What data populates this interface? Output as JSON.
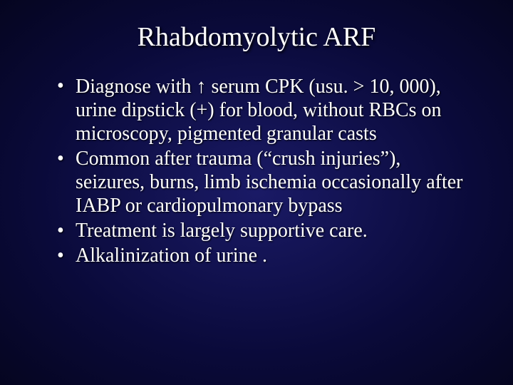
{
  "slide": {
    "background_gradient": {
      "center": "#1a1a66",
      "mid": "#0a0a3a",
      "edge": "#050520"
    },
    "text_color": "#ffffff",
    "font_family": "Times New Roman",
    "title": {
      "text": "Rhabdomyolytic ARF",
      "fontsize": 38,
      "align": "center",
      "shadow": "2px 2px 3px #000000"
    },
    "bullets": {
      "fontsize": 28,
      "items": [
        {
          "pre": "Diagnose with ",
          "arrow": "↑",
          "post": " serum CPK (usu. > 10, 000), urine dipstick (+) for blood, without RBCs on microscopy, pigmented granular casts"
        },
        {
          "text": "Common after trauma (“crush injuries”), seizures, burns, limb ischemia occasionally after IABP or cardiopulmonary bypass"
        },
        {
          "text": "Treatment is largely supportive care."
        },
        {
          "text": "Alkalinization of urine ."
        }
      ]
    }
  }
}
